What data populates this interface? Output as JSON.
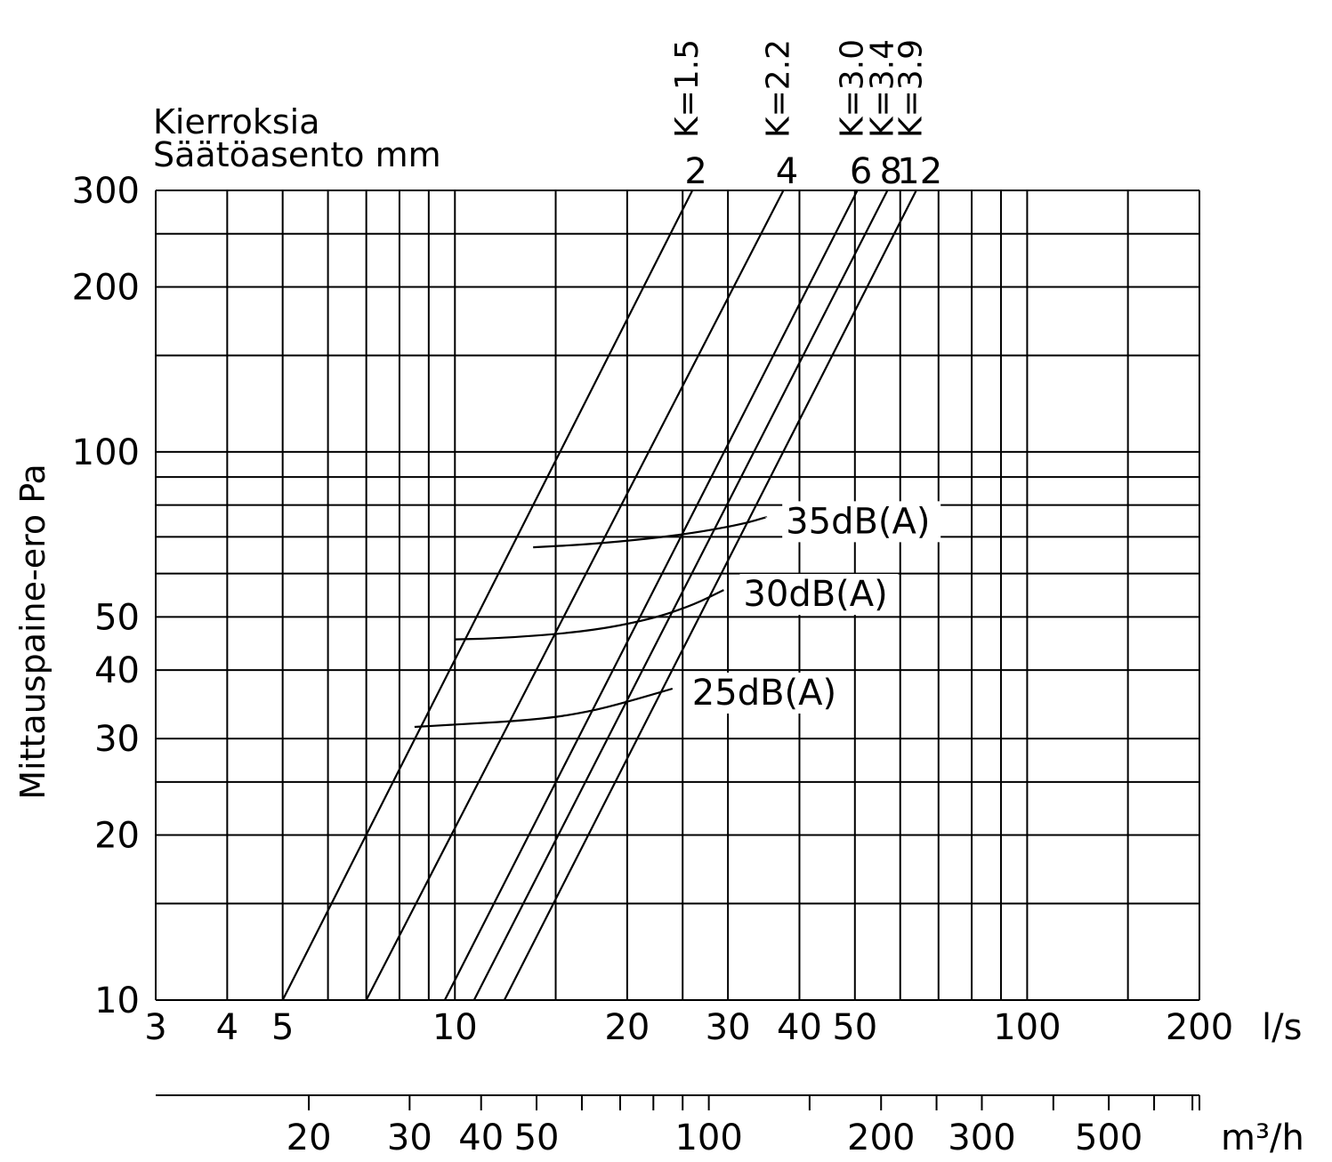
{
  "chart_data": {
    "type": "line",
    "title": "",
    "header_lines": [
      "Kierroksia",
      "Säätöasento  mm"
    ],
    "ylabel": "Mittauspaine-ero  Pa",
    "yscale": "log",
    "ylim": [
      10,
      300
    ],
    "y_ticks": [
      {
        "value": 10,
        "label": "10"
      },
      {
        "value": 20,
        "label": "20"
      },
      {
        "value": 30,
        "label": "30"
      },
      {
        "value": 40,
        "label": "40"
      },
      {
        "value": 50,
        "label": "50"
      },
      {
        "value": 100,
        "label": "100"
      },
      {
        "value": 200,
        "label": "200"
      },
      {
        "value": 300,
        "label": "300"
      }
    ],
    "y_gridlines": [
      10,
      15,
      20,
      25,
      30,
      40,
      50,
      60,
      70,
      80,
      90,
      100,
      150,
      200,
      250,
      300
    ],
    "xscale": "log",
    "xlim": [
      3,
      200
    ],
    "x_unit": "l/s",
    "x_ticks": [
      {
        "value": 3,
        "label": "3"
      },
      {
        "value": 4,
        "label": "4"
      },
      {
        "value": 5,
        "label": "5"
      },
      {
        "value": 10,
        "label": "10"
      },
      {
        "value": 20,
        "label": "20"
      },
      {
        "value": 30,
        "label": "30"
      },
      {
        "value": 40,
        "label": "40"
      },
      {
        "value": 50,
        "label": "50"
      },
      {
        "value": 100,
        "label": "100"
      },
      {
        "value": 200,
        "label": "200"
      }
    ],
    "x_gridlines": [
      3,
      4,
      5,
      6,
      7,
      8,
      9,
      10,
      15,
      20,
      25,
      30,
      40,
      50,
      60,
      70,
      80,
      90,
      100,
      150,
      200
    ],
    "x2_unit": "m³/h",
    "x2_ticks": [
      {
        "value": 20,
        "label": "20"
      },
      {
        "value": 30,
        "label": "30"
      },
      {
        "value": 40,
        "label": "40"
      },
      {
        "value": 50,
        "label": "50"
      },
      {
        "value": 100,
        "label": "100"
      },
      {
        "value": 200,
        "label": "200"
      },
      {
        "value": 300,
        "label": "300"
      },
      {
        "value": 500,
        "label": "500"
      }
    ],
    "x2_minor_ticks": [
      60,
      70,
      80,
      90,
      150,
      250,
      400,
      600,
      700
    ],
    "series": [
      {
        "name": "2",
        "k_label": "K=1.5",
        "x": [
          5.0,
          26.0
        ],
        "y": [
          10,
          300
        ]
      },
      {
        "name": "4",
        "k_label": "K=2.2",
        "x": [
          7.0,
          37.5
        ],
        "y": [
          10,
          300
        ]
      },
      {
        "name": "6",
        "k_label": "K=3.0",
        "x": [
          9.6,
          50.5
        ],
        "y": [
          10,
          300
        ]
      },
      {
        "name": "8",
        "k_label": "K=3.4",
        "x": [
          10.8,
          57.0
        ],
        "y": [
          10,
          300
        ]
      },
      {
        "name": "12",
        "k_label": "K=3.9",
        "x": [
          12.2,
          64.0
        ],
        "y": [
          10,
          300
        ]
      }
    ],
    "noise_curves": [
      {
        "name": "25dB(A)",
        "x": [
          8.5,
          10,
          14,
          17,
          20,
          24.0
        ],
        "y": [
          31.5,
          31.8,
          32.5,
          33.5,
          35.0,
          37.0
        ]
      },
      {
        "name": "30dB(A)",
        "x": [
          10.0,
          12,
          17,
          22,
          26,
          29.5
        ],
        "y": [
          45.5,
          45.7,
          47.0,
          49.5,
          52.5,
          56.0
        ]
      },
      {
        "name": "35dB(A)",
        "x": [
          13.7,
          17,
          22,
          27,
          32,
          35.0
        ],
        "y": [
          67.0,
          67.8,
          69.5,
          71.5,
          74.0,
          76.0
        ]
      }
    ]
  }
}
